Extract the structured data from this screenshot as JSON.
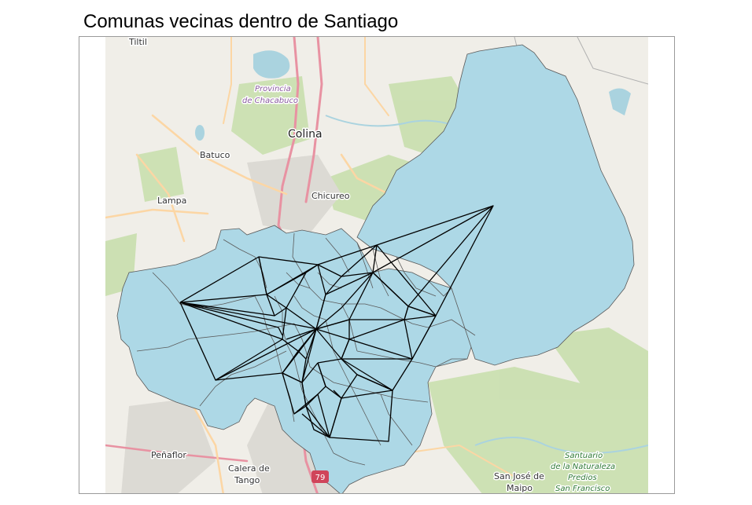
{
  "title": "Comunas vecinas dentro de Santiago",
  "colors": {
    "basemap": "#f0eee8",
    "park": "#c9dfae",
    "water": "#aad3df",
    "comuna_fill": "#add8e6",
    "comuna_border": "#5a5a5a",
    "graph_edge": "#000000",
    "motorway": "#e892a2",
    "primary_road": "#fcd6a4"
  },
  "map_labels": {
    "tiltil": "Tiltil",
    "provincia_line1": "Provincia",
    "provincia_line2": "de Chacabuco",
    "colina": "Colina",
    "batuco": "Batuco",
    "chicureo": "Chicureo",
    "lampa": "Lampa",
    "penaflor": "Peñaflor",
    "calera_line1": "Calera de",
    "calera_line2": "Tango",
    "route_79": "79",
    "sanjose_line1": "San José de",
    "sanjose_line2": "Maipo",
    "santuario_line1": "Santuario",
    "santuario_line2": "de la Naturaleza",
    "santuario_line3": "Predios",
    "santuario_line4": "San Francisco"
  }
}
